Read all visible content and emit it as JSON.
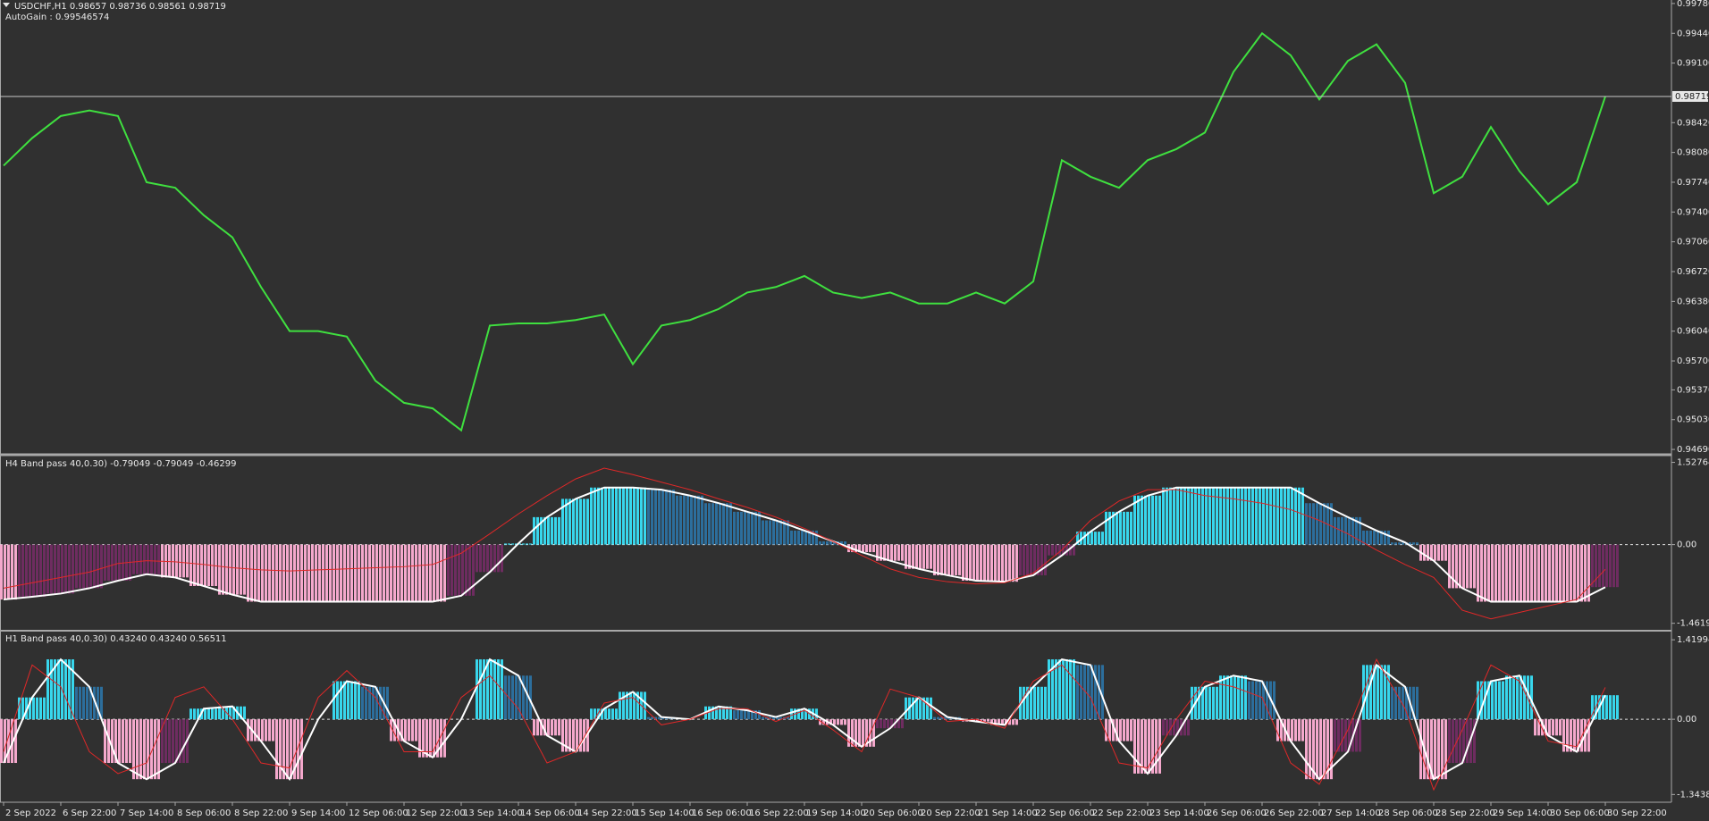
{
  "chart_data": [
    {
      "type": "line",
      "title": "USDCHF,H1  0.98657 0.98736 0.98561 0.98719",
      "subtitle": "AutoGain : 0.99546574",
      "color": "#3fe03f",
      "categories": [
        "2 Sep 2022",
        null,
        "6 Sep 22:00",
        null,
        "7 Sep 14:00",
        null,
        "8 Sep 06:00",
        null,
        "8 Sep 22:00",
        null,
        "9 Sep 14:00",
        null,
        "12 Sep 06:00",
        null,
        "12 Sep 22:00",
        null,
        "13 Sep 14:00",
        null,
        "14 Sep 06:00",
        null,
        "14 Sep 22:00",
        null,
        "15 Sep 14:00",
        null,
        "16 Sep 06:00",
        null,
        "16 Sep 22:00",
        null,
        "19 Sep 14:00",
        null,
        "20 Sep 06:00",
        null,
        "20 Sep 22:00",
        null,
        "21 Sep 14:00",
        null,
        "22 Sep 06:00",
        null,
        "22 Sep 22:00",
        null,
        "23 Sep 14:00",
        null,
        "26 Sep 06:00",
        null,
        "26 Sep 22:00",
        null,
        "27 Sep 14:00",
        null,
        "28 Sep 06:00",
        null,
        "28 Sep 22:00",
        null,
        "29 Sep 14:00",
        null,
        "30 Sep 06:00",
        null,
        "30 Sep 22:00"
      ],
      "values": [
        0.97929,
        0.98244,
        0.98496,
        0.98559,
        0.98496,
        0.9774,
        0.97677,
        0.97363,
        0.97111,
        0.96544,
        0.96041,
        0.96041,
        0.95978,
        0.95474,
        0.95222,
        0.95159,
        0.94908,
        0.96104,
        0.96129,
        0.96129,
        0.96167,
        0.9623,
        0.95663,
        0.96104,
        0.96167,
        0.96293,
        0.96481,
        0.96544,
        0.9667,
        0.96481,
        0.96418,
        0.96481,
        0.96356,
        0.96356,
        0.96481,
        0.96356,
        0.96607,
        0.97992,
        0.97803,
        0.97677,
        0.97992,
        0.98118,
        0.98307,
        0.98999,
        0.9944,
        0.99188,
        0.98685,
        0.99125,
        0.99314,
        0.98874,
        0.97615,
        0.97803,
        0.9837,
        0.97866,
        0.97489,
        0.9774,
        0.98719
      ],
      "last_price": 0.98719,
      "ylim": [
        0.9465,
        0.9982
      ],
      "yticks": [
        {
          "value": 0.9978,
          "label": "0.99780"
        },
        {
          "value": 0.9944,
          "label": "0.99440"
        },
        {
          "value": 0.991,
          "label": "0.99100"
        },
        {
          "value": 0.9842,
          "label": "0.98420"
        },
        {
          "value": 0.9808,
          "label": "0.98080"
        },
        {
          "value": 0.9774,
          "label": "0.97740"
        },
        {
          "value": 0.974,
          "label": "0.97400"
        },
        {
          "value": 0.9706,
          "label": "0.97060"
        },
        {
          "value": 0.9672,
          "label": "0.96720"
        },
        {
          "value": 0.9638,
          "label": "0.96380"
        },
        {
          "value": 0.9604,
          "label": "0.96040"
        },
        {
          "value": 0.957,
          "label": "0.95700"
        },
        {
          "value": 0.9537,
          "label": "0.95370"
        },
        {
          "value": 0.9503,
          "label": "0.95030"
        },
        {
          "value": 0.9469,
          "label": "0.94690"
        }
      ]
    },
    {
      "type": "bar",
      "title": "H4 Band pass 40,0.30) -0.79049 -0.79049 -0.46299",
      "values": [
        -1.02,
        -0.97,
        -0.91,
        -0.81,
        -0.67,
        -0.55,
        -0.61,
        -0.77,
        -0.93,
        -1.06,
        -1.06,
        -1.06,
        -1.06,
        -1.06,
        -1.06,
        -1.06,
        -0.95,
        -0.51,
        0.02,
        0.51,
        0.85,
        1.06,
        1.06,
        1.02,
        0.91,
        0.77,
        0.61,
        0.45,
        0.26,
        0.06,
        -0.14,
        -0.3,
        -0.45,
        -0.57,
        -0.67,
        -0.69,
        -0.57,
        -0.2,
        0.24,
        0.61,
        0.91,
        1.06,
        1.06,
        1.06,
        1.06,
        1.06,
        0.77,
        0.51,
        0.26,
        0.04,
        -0.3,
        -0.81,
        -1.06,
        -1.06,
        -1.06,
        -1.06,
        -0.79
      ],
      "bar_colors": [
        "#38d6ec",
        "#2c6e9c",
        "#f4a8cc",
        "#6e2c60"
      ],
      "line_color": "#ffffff",
      "signal": {
        "color": "#e02828",
        "values": [
          -0.81,
          -0.71,
          -0.61,
          -0.51,
          -0.35,
          -0.3,
          -0.32,
          -0.37,
          -0.43,
          -0.47,
          -0.49,
          -0.47,
          -0.45,
          -0.43,
          -0.41,
          -0.37,
          -0.16,
          0.2,
          0.57,
          0.91,
          1.22,
          1.42,
          1.3,
          1.16,
          1.02,
          0.85,
          0.69,
          0.51,
          0.3,
          0.06,
          -0.2,
          -0.45,
          -0.61,
          -0.69,
          -0.73,
          -0.71,
          -0.53,
          -0.1,
          0.45,
          0.81,
          1.02,
          1.02,
          0.91,
          0.85,
          0.77,
          0.65,
          0.45,
          0.2,
          -0.1,
          -0.37,
          -0.61,
          -1.22,
          -1.38,
          -1.26,
          -1.14,
          -1.02,
          -0.46
        ]
      },
      "ylim": [
        -1.55,
        1.62
      ],
      "yticks": [
        1.52764,
        {
          "value": 0,
          "label": "0.00"
        },
        -1.46196
      ],
      "zero_line": true
    },
    {
      "type": "bar",
      "title": "H1 Band pass 40,0.30) 0.43240 0.43240 0.56511",
      "values": [
        -0.78,
        0.39,
        1.07,
        0.58,
        -0.78,
        -1.07,
        -0.78,
        0.19,
        0.23,
        -0.39,
        -1.07,
        0.0,
        0.68,
        0.58,
        -0.39,
        -0.68,
        0.0,
        1.07,
        0.78,
        -0.29,
        -0.58,
        0.19,
        0.49,
        0.04,
        0.0,
        0.23,
        0.16,
        0.04,
        0.19,
        -0.1,
        -0.49,
        -0.16,
        0.39,
        0.04,
        -0.04,
        -0.1,
        0.58,
        1.07,
        0.97,
        -0.39,
        -0.97,
        -0.29,
        0.58,
        0.78,
        0.68,
        -0.39,
        -1.07,
        -0.58,
        0.97,
        0.58,
        -1.07,
        -0.78,
        0.68,
        0.78,
        -0.29,
        -0.58,
        0.43
      ],
      "bar_colors": [
        "#38d6ec",
        "#2c6e9c",
        "#f4a8cc",
        "#6e2c60"
      ],
      "line_color": "#ffffff",
      "signal": {
        "color": "#e02828",
        "values": [
          -0.58,
          0.97,
          0.58,
          -0.58,
          -0.97,
          -0.78,
          0.39,
          0.58,
          0.0,
          -0.78,
          -0.87,
          0.39,
          0.87,
          0.39,
          -0.58,
          -0.58,
          0.39,
          0.78,
          0.19,
          -0.78,
          -0.58,
          0.29,
          0.39,
          -0.1,
          0.0,
          0.19,
          0.19,
          -0.04,
          0.16,
          -0.19,
          -0.58,
          0.54,
          0.39,
          -0.04,
          0.0,
          -0.16,
          0.68,
          0.97,
          0.39,
          -0.78,
          -0.87,
          0.0,
          0.68,
          0.58,
          0.39,
          -0.78,
          -1.16,
          -0.19,
          1.07,
          0.19,
          -1.26,
          -0.19,
          0.97,
          0.68,
          -0.39,
          -0.49,
          0.57
        ]
      },
      "ylim": [
        -1.45,
        1.55
      ],
      "yticks": [
        1.41994,
        {
          "value": 0,
          "label": "0.00"
        },
        -1.34387
      ],
      "zero_line": true
    }
  ]
}
